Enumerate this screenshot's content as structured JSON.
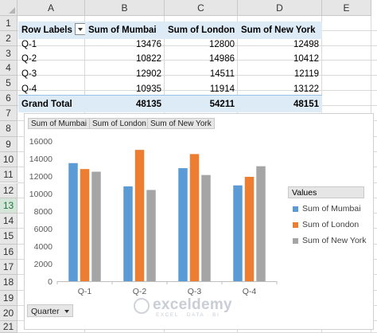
{
  "sheet": {
    "columns": [
      "A",
      "B",
      "C",
      "D",
      "E"
    ],
    "rows": [
      "1",
      "2",
      "3",
      "4",
      "5",
      "6",
      "7",
      "8",
      "9",
      "10",
      "11",
      "12",
      "13",
      "14",
      "15",
      "16",
      "17",
      "18",
      "19",
      "20",
      "21"
    ]
  },
  "pivot": {
    "headers": [
      "Row Labels",
      "Sum of Mumbai",
      "Sum of London",
      "Sum of New York"
    ],
    "rows": [
      {
        "label": "Q-1",
        "values": [
          "13476",
          "12800",
          "12498"
        ]
      },
      {
        "label": "Q-2",
        "values": [
          "10822",
          "14986",
          "10412"
        ]
      },
      {
        "label": "Q-3",
        "values": [
          "12902",
          "14511",
          "12119"
        ]
      },
      {
        "label": "Q-4",
        "values": [
          "10935",
          "11914",
          "13122"
        ]
      }
    ],
    "total": {
      "label": "Grand Total",
      "values": [
        "48135",
        "54211",
        "48151"
      ]
    }
  },
  "chart": {
    "field_buttons": [
      "Sum of Mumbai",
      "Sum of London",
      "Sum of New York"
    ],
    "legend_title": "Values",
    "axis_button": "Quarter"
  },
  "chart_data": {
    "type": "bar",
    "categories": [
      "Q-1",
      "Q-2",
      "Q-3",
      "Q-4"
    ],
    "series": [
      {
        "name": "Sum of Mumbai",
        "color": "#5b9bd5",
        "values": [
          13476,
          10822,
          12902,
          10935
        ]
      },
      {
        "name": "Sum of London",
        "color": "#ed7d31",
        "values": [
          12800,
          14986,
          14511,
          11914
        ]
      },
      {
        "name": "Sum of New York",
        "color": "#a5a5a5",
        "values": [
          12498,
          10412,
          12119,
          13122
        ]
      }
    ],
    "yticks": [
      "0",
      "2000",
      "4000",
      "6000",
      "8000",
      "10000",
      "12000",
      "14000",
      "16000"
    ],
    "ylim": [
      0,
      16000
    ],
    "grid": false,
    "legend_position": "right"
  },
  "watermark": {
    "name": "exceldemy",
    "sub": "EXCEL · DATA · BI"
  }
}
